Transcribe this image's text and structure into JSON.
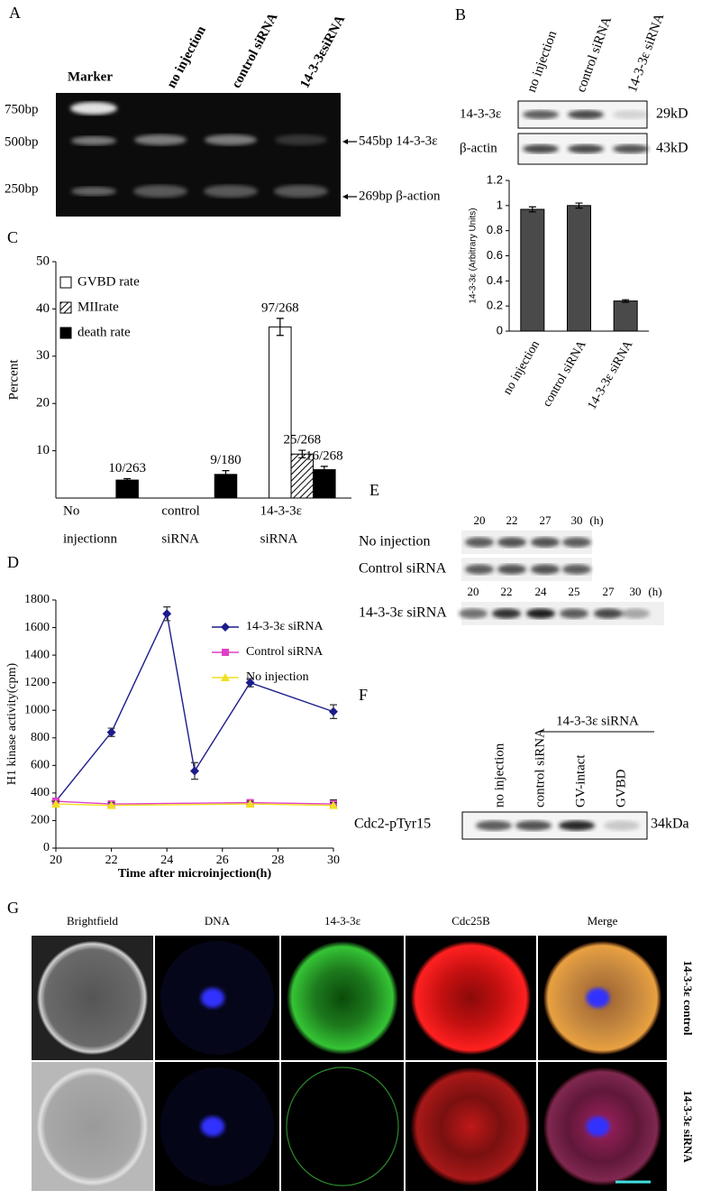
{
  "panels": {
    "A": {
      "label": "A",
      "lanes": [
        "Marker",
        "no injection",
        "control siRNA",
        "14-3-3εsiRNA"
      ],
      "ladder": [
        "750bp",
        "500bp",
        "250bp"
      ],
      "bands": [
        "545bp 14-3-3ε",
        "269bp β-action"
      ]
    },
    "B": {
      "label": "B",
      "lanes": [
        "no injection",
        "control siRNA",
        "14-3-3ε siRNA"
      ],
      "rows": [
        {
          "name": "14-3-3ε",
          "size": "29kD"
        },
        {
          "name": "β-actin",
          "size": "43kD"
        }
      ]
    },
    "C": {
      "label": "C"
    },
    "D": {
      "label": "D"
    },
    "E": {
      "label": "E",
      "groups": [
        {
          "times": [
            "20",
            "22",
            "27",
            "30",
            "(h)"
          ],
          "rows": [
            "No injection",
            "Control siRNA"
          ]
        },
        {
          "times": [
            "20",
            "22",
            "24",
            "25",
            "27",
            "30",
            "(h)"
          ],
          "rows": [
            "14-3-3ε siRNA"
          ]
        }
      ]
    },
    "F": {
      "label": "F",
      "group": "14-3-3ε siRNA",
      "lanes": [
        "no injection",
        "control siRNA",
        "GV-intact",
        "GVBD"
      ],
      "row": "Cdc2-pTyr15",
      "size": "34kDa"
    },
    "G": {
      "label": "G",
      "columns": [
        "Brightfield",
        "DNA",
        "14-3-3ε",
        "Cdc25B",
        "Merge"
      ],
      "rows": [
        "14-3-3ε control",
        "14-3-3ε siRNA"
      ]
    }
  },
  "chart_data": [
    {
      "type": "bar",
      "ylabel": "14-3-3ε (Arbitrary Units)",
      "categories": [
        "no injection",
        "control  siRNA",
        "14-3-3ε siRNA"
      ],
      "values": [
        0.97,
        1.0,
        0.24
      ],
      "errors": [
        0.02,
        0.02,
        0.01
      ],
      "color": "#4a4a4a",
      "ylim": [
        0,
        1.2
      ],
      "yticks": [
        0,
        0.2,
        0.4,
        0.6,
        0.8,
        1,
        1.2
      ]
    },
    {
      "type": "bar",
      "ylabel": "Percent",
      "categories": [
        [
          "No",
          "injectionn"
        ],
        [
          "control",
          "siRNA"
        ],
        [
          "14-3-3ε",
          "siRNA"
        ]
      ],
      "series": [
        {
          "name": "GVBD rate",
          "color": "#ffffff",
          "values": [
            null,
            null,
            36.2
          ],
          "errors": [
            null,
            null,
            1.8
          ],
          "value_labels": [
            null,
            null,
            "97/268"
          ]
        },
        {
          "name": "MIIrate",
          "color": "#ffffff",
          "hatch": true,
          "values": [
            null,
            null,
            9.3
          ],
          "errors": [
            null,
            null,
            0.8
          ],
          "value_labels": [
            null,
            null,
            "25/268"
          ]
        },
        {
          "name": "death rate",
          "color": "#000000",
          "values": [
            3.8,
            5.0,
            6.0
          ],
          "errors": [
            0.3,
            0.8,
            0.7
          ],
          "value_labels": [
            "10/263",
            "9/180",
            "16/268"
          ]
        }
      ],
      "ylim": [
        0,
        50
      ],
      "yticks": [
        10,
        20,
        30,
        40,
        50
      ],
      "legend": "upper left"
    },
    {
      "type": "line",
      "xlabel": "Time after microinjection(h)",
      "ylabel": "H1 kinase activity(cpm)",
      "series": [
        {
          "name": "14-3-3ε siRNA",
          "color": "#1c1c8c",
          "marker": "diamond",
          "x": [
            20,
            22,
            24,
            25,
            27,
            30
          ],
          "values": [
            340,
            840,
            1700,
            560,
            1200,
            990
          ],
          "errors": [
            20,
            30,
            50,
            60,
            30,
            50
          ]
        },
        {
          "name": "Control siRNA",
          "color": "#e040c8",
          "marker": "square",
          "x": [
            20,
            22,
            27,
            30
          ],
          "values": [
            340,
            320,
            330,
            320
          ],
          "errors": [
            20,
            20,
            20,
            30
          ]
        },
        {
          "name": "No injection",
          "color": "#f0e020",
          "marker": "triangle",
          "x": [
            20,
            22,
            27,
            30
          ],
          "values": [
            320,
            310,
            320,
            310
          ],
          "errors": [
            20,
            20,
            20,
            20
          ]
        }
      ],
      "xlim": [
        20,
        30
      ],
      "xticks": [
        20,
        22,
        24,
        26,
        28,
        30
      ],
      "ylim": [
        0,
        1800
      ],
      "yticks": [
        0,
        200,
        400,
        600,
        800,
        1000,
        1200,
        1400,
        1600,
        1800
      ],
      "legend": "upper right"
    }
  ]
}
